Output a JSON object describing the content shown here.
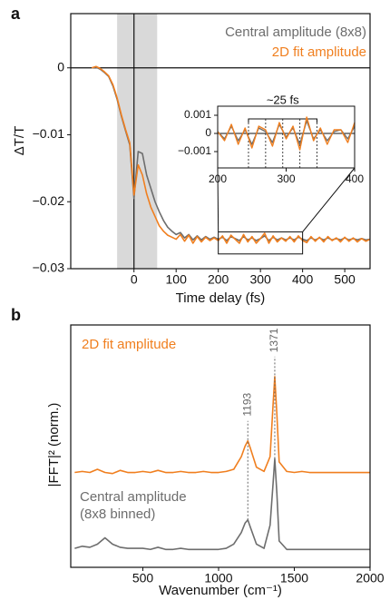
{
  "chart_data": [
    {
      "type": "line",
      "panel_label": "a",
      "xlabel": "Time delay (fs)",
      "ylabel": "ΔT/T",
      "xlim": [
        -150,
        560
      ],
      "ylim": [
        -0.03,
        0.0081
      ],
      "xticks": [
        0,
        100,
        200,
        300,
        400,
        500
      ],
      "yticks": [
        {
          "value": -0.03,
          "label": "−0.03"
        },
        {
          "value": -0.02,
          "label": "−0.02"
        },
        {
          "value": -0.01,
          "label": "−0.01"
        },
        0
      ],
      "shaded_region": [
        -40,
        55
      ],
      "vline": 0,
      "hline": 0,
      "zoom_box": {
        "xlim": [
          200,
          400
        ],
        "ylim": [
          -0.0278,
          -0.0245
        ]
      },
      "x": [
        -100,
        -90,
        -80,
        -70,
        -60,
        -50,
        -40,
        -30,
        -20,
        -10,
        0,
        10,
        20,
        30,
        40,
        50,
        60,
        70,
        80,
        90,
        100,
        110,
        120,
        130,
        140,
        150,
        160,
        170,
        180,
        190,
        200,
        210,
        220,
        230,
        240,
        250,
        260,
        270,
        280,
        290,
        300,
        310,
        320,
        330,
        340,
        350,
        360,
        370,
        380,
        390,
        400,
        410,
        420,
        430,
        440,
        450,
        460,
        470,
        480,
        490,
        500,
        510,
        520,
        530,
        540,
        550,
        560
      ],
      "series": [
        {
          "name": "Central amplitude (8x8)",
          "color": "#6d6d6d",
          "values": [
            0.0,
            0.0001,
            -0.0002,
            -0.0007,
            -0.0013,
            -0.0027,
            -0.0047,
            -0.0072,
            -0.0094,
            -0.0115,
            -0.0195,
            -0.0125,
            -0.0128,
            -0.016,
            -0.018,
            -0.02,
            -0.0215,
            -0.0228,
            -0.0238,
            -0.0244,
            -0.0249,
            -0.0246,
            -0.0254,
            -0.0249,
            -0.0257,
            -0.0251,
            -0.0257,
            -0.0252,
            -0.0256,
            -0.0253,
            -0.0256,
            -0.0253,
            -0.0258,
            -0.0252,
            -0.0255,
            -0.0258,
            -0.0252,
            -0.0257,
            -0.0254,
            -0.0258,
            -0.0255,
            -0.0251,
            -0.0258,
            -0.0253,
            -0.0257,
            -0.0254,
            -0.0257,
            -0.0254,
            -0.0257,
            -0.0253,
            -0.0256,
            -0.0258,
            -0.0254,
            -0.0257,
            -0.0254,
            -0.0257,
            -0.0254,
            -0.0257,
            -0.0255,
            -0.0257,
            -0.0254,
            -0.0257,
            -0.0255,
            -0.0257,
            -0.0255,
            -0.0257,
            -0.0256
          ]
        },
        {
          "name": "2D fit amplitude",
          "color": "#f07f1f",
          "values": [
            0.0,
            0.0002,
            -0.0001,
            -0.0006,
            -0.0012,
            -0.0025,
            -0.0045,
            -0.007,
            -0.0092,
            -0.0112,
            -0.019,
            -0.0145,
            -0.016,
            -0.0188,
            -0.0208,
            -0.0222,
            -0.0236,
            -0.0244,
            -0.025,
            -0.0253,
            -0.0256,
            -0.0249,
            -0.0259,
            -0.025,
            -0.0262,
            -0.0252,
            -0.026,
            -0.0253,
            -0.0258,
            -0.0254,
            -0.0258,
            -0.0251,
            -0.0262,
            -0.025,
            -0.0256,
            -0.0262,
            -0.0249,
            -0.026,
            -0.0252,
            -0.0262,
            -0.0255,
            -0.0247,
            -0.0262,
            -0.0251,
            -0.026,
            -0.0254,
            -0.0259,
            -0.0252,
            -0.026,
            -0.0251,
            -0.0258,
            -0.0261,
            -0.0252,
            -0.0259,
            -0.0253,
            -0.026,
            -0.0252,
            -0.0258,
            -0.0254,
            -0.026,
            -0.0253,
            -0.0259,
            -0.0254,
            -0.026,
            -0.0255,
            -0.0259,
            -0.0256
          ]
        }
      ]
    },
    {
      "type": "line",
      "xlim": [
        200,
        400
      ],
      "ylim": [
        -0.0019,
        0.0015
      ],
      "xticks": [
        200,
        300,
        400
      ],
      "yticks": [
        {
          "value": -0.001,
          "label": "−0.001"
        },
        0,
        0.001
      ],
      "markers": [
        245,
        270,
        295,
        320,
        345
      ],
      "bracket_label": "~25 fs",
      "x": [
        200,
        210,
        220,
        230,
        240,
        250,
        260,
        270,
        280,
        290,
        300,
        310,
        320,
        330,
        340,
        350,
        360,
        370,
        380,
        390,
        400
      ],
      "series": [
        {
          "color": "#6d6d6d",
          "values": [
            0.0001,
            -0.0003,
            0.0004,
            -0.0004,
            0.0002,
            -0.0006,
            0.0003,
            0.0001,
            -0.0005,
            0.0005,
            -0.0002,
            0.0003,
            -0.0006,
            0.0007,
            -0.0003,
            0.0002,
            -0.0004,
            0.0001,
            0.0002,
            -0.0003,
            0.0004
          ]
        },
        {
          "color": "#f07f1f",
          "values": [
            0.0001,
            -0.0004,
            0.0005,
            -0.0006,
            0.0003,
            -0.0008,
            0.0004,
            0.0002,
            -0.0007,
            0.0006,
            -0.0003,
            0.0004,
            -0.0009,
            0.0009,
            -0.0004,
            0.0003,
            -0.0006,
            0.0002,
            0.0002,
            -0.0005,
            0.0006
          ]
        }
      ]
    },
    {
      "type": "line",
      "panel_label": "b",
      "xlabel": "Wavenumber (cm⁻¹)",
      "ylabel": "|FFT|² (norm.)",
      "xlim": [
        24,
        2000
      ],
      "ylim": [
        0,
        2.3
      ],
      "xticks": [
        500,
        1000,
        1500,
        2000
      ],
      "peaks": [
        1193,
        1371
      ],
      "x": [
        50,
        100,
        150,
        200,
        250,
        300,
        350,
        400,
        450,
        500,
        550,
        600,
        650,
        700,
        750,
        800,
        850,
        900,
        950,
        1000,
        1050,
        1100,
        1150,
        1175,
        1193,
        1210,
        1250,
        1300,
        1340,
        1360,
        1371,
        1385,
        1400,
        1450,
        1500,
        1550,
        1600,
        1700,
        1800,
        1900,
        2000
      ],
      "series": [
        {
          "name": "2D fit amplitude",
          "color": "#f07f1f",
          "values": [
            0.9,
            0.91,
            0.9,
            0.93,
            0.9,
            0.89,
            0.92,
            0.9,
            0.9,
            0.91,
            0.9,
            0.92,
            0.9,
            0.9,
            0.91,
            0.9,
            0.9,
            0.91,
            0.9,
            0.9,
            0.91,
            0.93,
            1.05,
            1.15,
            1.2,
            1.13,
            0.95,
            0.91,
            1.05,
            1.55,
            1.81,
            1.45,
            1.0,
            0.91,
            0.9,
            0.91,
            0.9,
            0.9,
            0.9,
            0.9,
            0.9
          ]
        },
        {
          "name": "Central amplitude (8x8 binned)",
          "color": "#6d6d6d",
          "values": [
            0.18,
            0.2,
            0.19,
            0.22,
            0.28,
            0.22,
            0.19,
            0.18,
            0.18,
            0.18,
            0.17,
            0.19,
            0.17,
            0.17,
            0.18,
            0.17,
            0.17,
            0.17,
            0.17,
            0.17,
            0.18,
            0.22,
            0.33,
            0.42,
            0.45,
            0.38,
            0.22,
            0.18,
            0.4,
            0.8,
            1.03,
            0.7,
            0.25,
            0.17,
            0.17,
            0.17,
            0.17,
            0.17,
            0.17,
            0.17,
            0.17
          ]
        }
      ]
    }
  ]
}
